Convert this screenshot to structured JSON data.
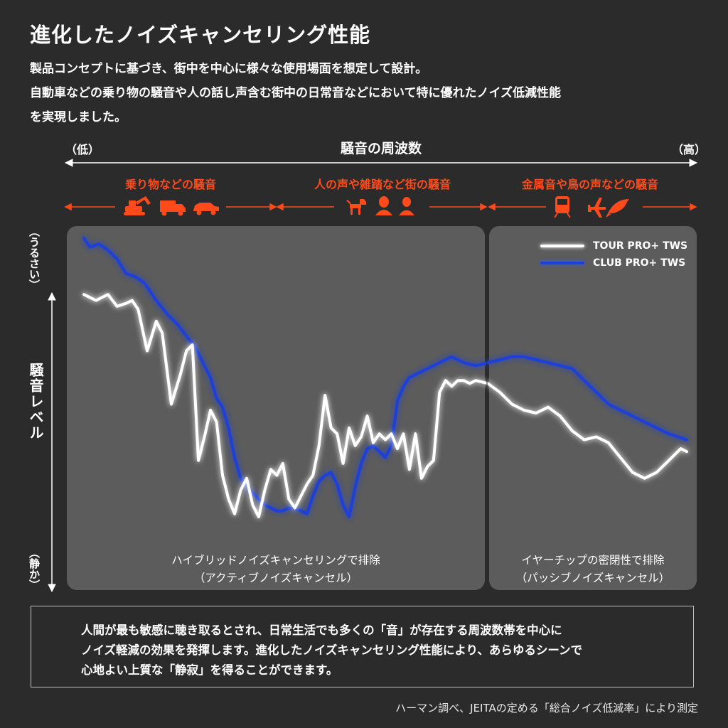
{
  "header": {
    "title": "進化したノイズキャンセリング性能",
    "intro_lines": [
      "製品コンセプトに基づき、街中を中心に様々な使用場面を想定して設計。",
      "自動車などの乗り物の騒音や人の話し声含む街中の日常音などにおいて特に優れたノイズ低減性能",
      "を実現しました。"
    ]
  },
  "frequency_axis": {
    "title": "騒音の周波数",
    "low": "（低）",
    "high": "（高）"
  },
  "categories": [
    {
      "label": "乗り物などの騒音",
      "icons": [
        "excavator-icon",
        "truck-icon",
        "car-icon"
      ]
    },
    {
      "label": "人の声や雑踏など街の騒音",
      "icons": [
        "dog-icon",
        "woman-icon",
        "person-icon"
      ]
    },
    {
      "label": "金属音や鳥の声などの騒音",
      "icons": [
        "train-icon",
        "airplane-icon",
        "bird-icon"
      ]
    }
  ],
  "y_axis": {
    "label": "騒音レベル",
    "top": "（うるさい）",
    "bottom": "（静か）"
  },
  "regions": [
    {
      "caption_lines": [
        "ハイブリッドノイズキャンセリングで排除",
        "（アクティブノイズキャンセル）"
      ]
    },
    {
      "caption_lines": [
        "イヤーチップの密閉性で排除",
        "（パッシブノイズキャンセル）"
      ]
    }
  ],
  "colors": {
    "background": "#2b2b2b",
    "panel": "#5a5a5a",
    "accent": "#ff4a1c",
    "tour": "#ffffff",
    "club": "#1e3fd8"
  },
  "chart_data": {
    "type": "line",
    "title": "",
    "xlabel": "騒音の周波数",
    "ylabel": "騒音レベル",
    "xlim": [
      0,
      100
    ],
    "ylim": [
      0,
      100
    ],
    "grid": false,
    "legend_position": "top-right",
    "series": [
      {
        "name": "TOUR PRO+ TWS",
        "color": "#ffffff",
        "x": [
          0,
          2,
          4,
          5.5,
          7,
          8,
          9,
          10.5,
          12,
          13,
          14.5,
          16,
          17,
          18,
          19,
          20,
          21,
          22,
          23,
          24,
          25,
          26,
          27,
          28,
          29,
          30,
          31,
          32,
          33,
          34,
          35,
          36,
          37,
          38,
          39,
          40,
          41,
          42,
          43,
          44,
          45,
          46,
          47,
          48,
          49,
          50,
          51,
          52,
          53,
          54,
          55,
          56,
          57,
          58,
          59,
          60,
          61,
          62,
          63,
          64,
          65,
          67,
          69,
          71,
          73,
          75,
          77,
          79,
          81,
          83,
          85,
          87,
          89,
          91,
          93,
          95,
          97,
          99,
          100
        ],
        "y": [
          81,
          79,
          81,
          77,
          78,
          79,
          76,
          62,
          72,
          68,
          44,
          54,
          62,
          64,
          25,
          33,
          42,
          38,
          20,
          12,
          7,
          15,
          19,
          10,
          6,
          15,
          22,
          20,
          24,
          12,
          9,
          13,
          17,
          20,
          30,
          47,
          36,
          34,
          24,
          36,
          30,
          33,
          40,
          31,
          34,
          32,
          34,
          29,
          34,
          22,
          34,
          19,
          23,
          25,
          48,
          52,
          50,
          52,
          52,
          51,
          52,
          51,
          48,
          44,
          42,
          41,
          43,
          40,
          35,
          32,
          33,
          31,
          26,
          21,
          19,
          21,
          25,
          29,
          28
        ]
      },
      {
        "name": "CLUB PRO+ TWS",
        "color": "#1e3fd8",
        "x": [
          0,
          1,
          2.5,
          4,
          5.5,
          7,
          8.5,
          10,
          12,
          14,
          15.5,
          17,
          18.5,
          20,
          21,
          22,
          23,
          24,
          25,
          26,
          27,
          28,
          29,
          30,
          31,
          32,
          33,
          34,
          35,
          36,
          37,
          38,
          39,
          40,
          41,
          42,
          43,
          44,
          45,
          46,
          47,
          48,
          49,
          50,
          51,
          52,
          53,
          54,
          55,
          57,
          59,
          61,
          63,
          65,
          67,
          69,
          71,
          73,
          75,
          77,
          79,
          81,
          83,
          85,
          87,
          89,
          91,
          93,
          95,
          97,
          100
        ],
        "y": [
          100,
          97,
          98,
          96,
          93,
          88,
          87,
          85,
          79,
          74,
          71,
          67,
          63,
          57,
          53,
          46,
          43,
          36,
          26,
          19,
          16,
          14,
          12,
          10,
          9,
          8,
          8,
          9,
          9,
          8,
          7,
          13,
          18,
          20,
          21,
          17,
          10,
          6,
          16,
          24,
          29,
          30,
          28,
          26,
          30,
          45,
          50,
          53,
          54,
          56,
          58,
          60,
          58,
          57,
          58,
          59,
          60,
          60,
          59,
          58,
          57,
          56,
          52,
          48,
          44,
          42,
          40,
          38,
          36,
          34,
          32
        ]
      }
    ],
    "annotations": [
      "ハイブリッドノイズキャンセリングで排除",
      "（アクティブノイズキャンセル）",
      "イヤーチップの密閉性で排除",
      "（パッシブノイズキャンセル）"
    ]
  },
  "note": {
    "lines": [
      "人間が最も敏感に聴き取るとされ、日常生活でも多くの「音」が存在する周波数帯を中心に",
      "ノイズ軽減の効果を発揮します。進化したノイズキャンセリング性能により、あらゆるシーンで",
      "心地よい上質な「静寂」を得ることができます。"
    ]
  },
  "source": "ハーマン調べ、JEITAの定める「総合ノイズ低減率」により測定"
}
